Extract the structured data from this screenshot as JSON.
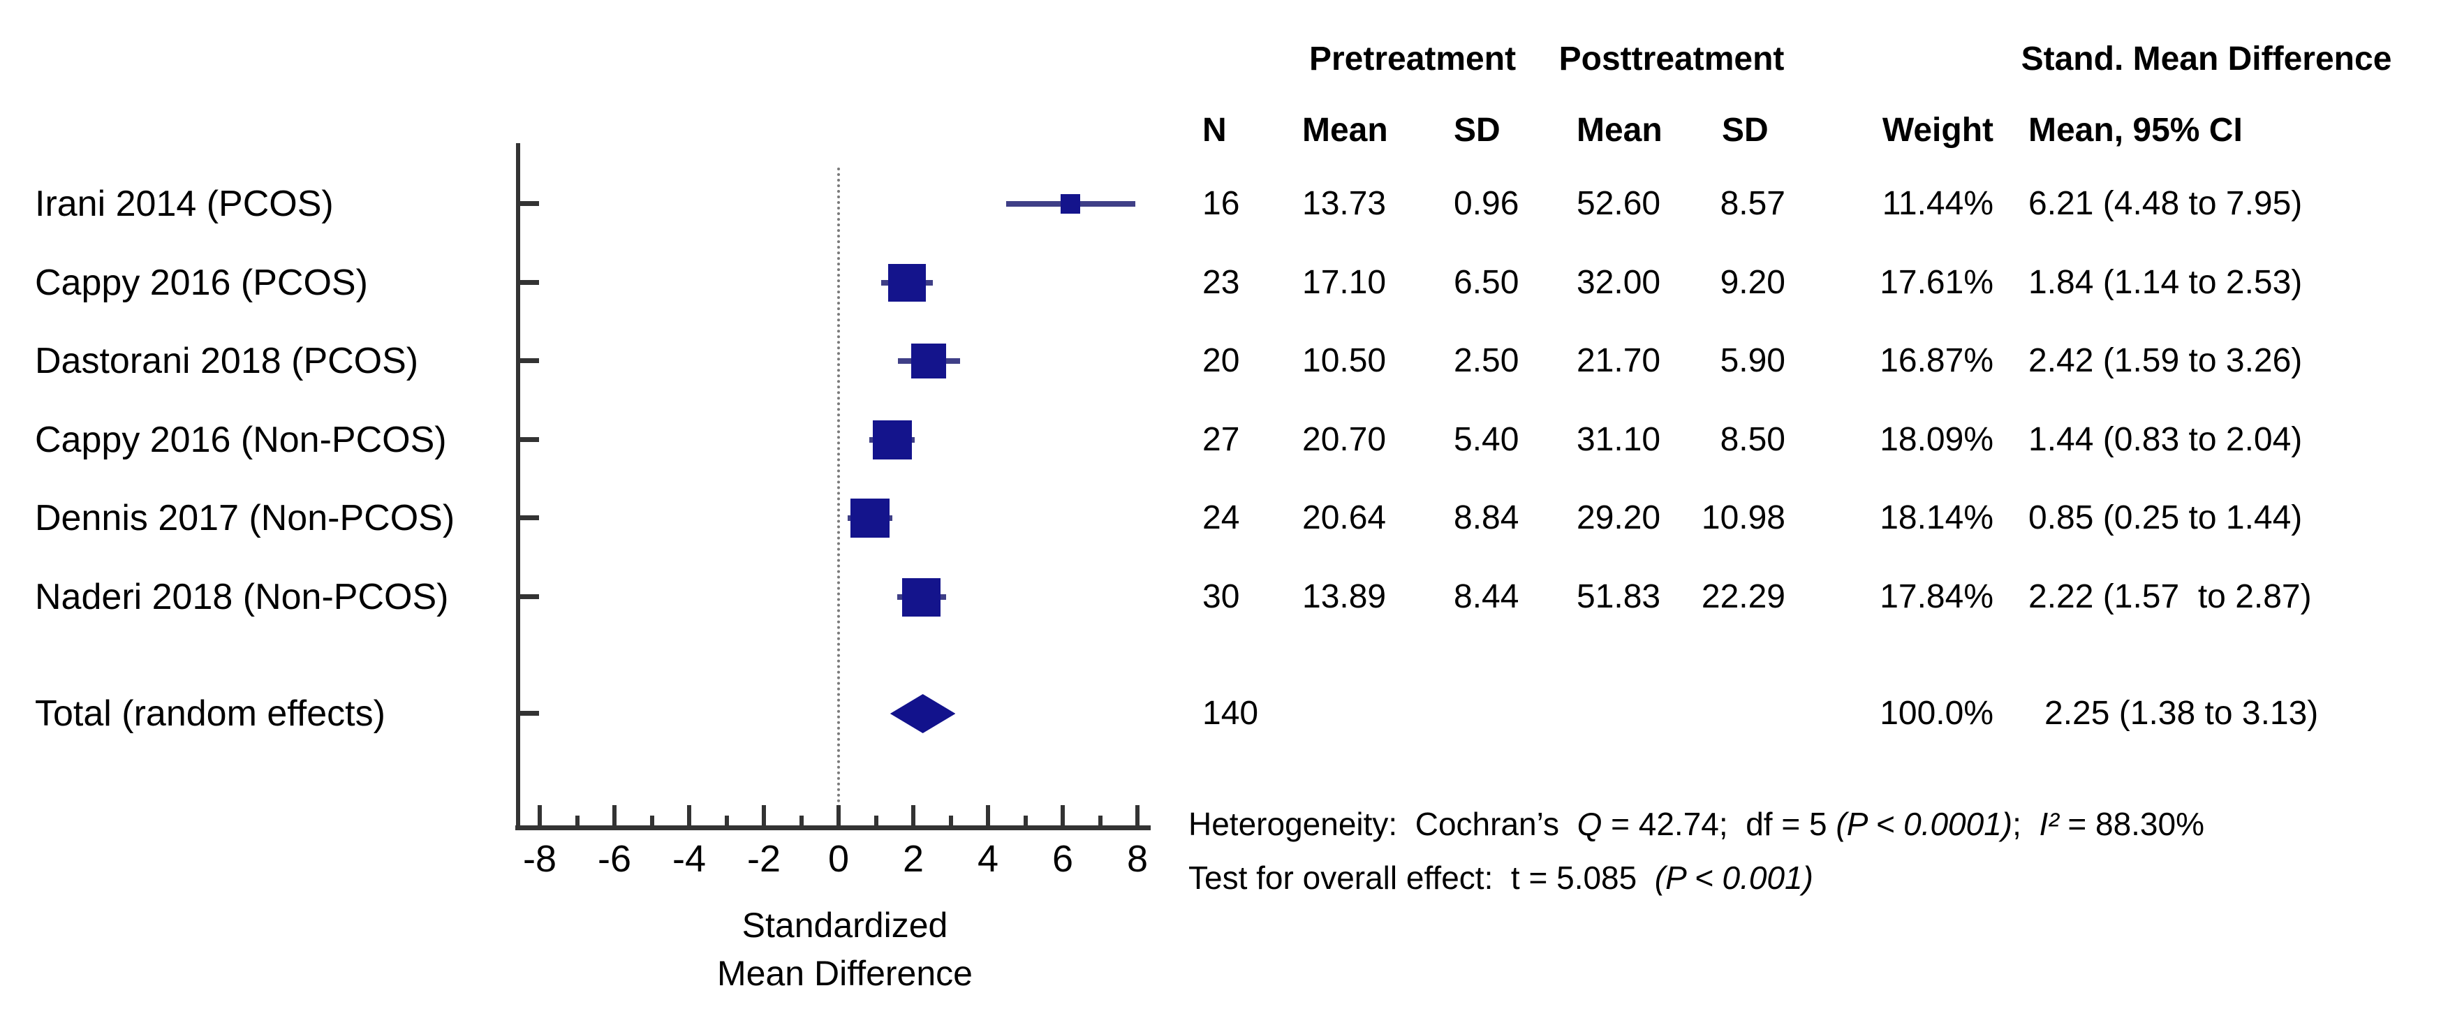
{
  "headers": {
    "pretreatment": "Pretreatment",
    "posttreatment": "Posttreatment",
    "smd_group": "Stand. Mean Difference",
    "n": "N",
    "pre_mean": "Mean",
    "pre_sd": "SD",
    "post_mean": "Mean",
    "post_sd": "SD",
    "weight": "Weight",
    "mean_ci": "Mean, 95% CI"
  },
  "axis_title": {
    "line1": "Standardized",
    "line2": "Mean Difference"
  },
  "colors": {
    "marker_square": "#14148C",
    "ci_line": "#3F3F87",
    "diamond": "#12128C",
    "axis": "#333333"
  },
  "chart_data": {
    "type": "forest",
    "xlabel": "Standardized Mean Difference",
    "x_axis": {
      "min": -8,
      "max": 8,
      "major_ticks": [
        -8,
        -6,
        -4,
        -2,
        0,
        2,
        4,
        6,
        8
      ],
      "minor_ticks": [
        -7,
        -5,
        -3,
        -1,
        1,
        3,
        5,
        7
      ],
      "zero_reference_line": 0
    },
    "studies": [
      {
        "label": "Irani 2014 (PCOS)",
        "n": "16",
        "pre_mean": "13.73",
        "pre_sd": "0.96",
        "post_mean": "52.60",
        "post_sd": "8.57",
        "weight": "11.44%",
        "weight_value": 11.44,
        "smd": 6.21,
        "ci_low": 4.48,
        "ci_high": 7.95,
        "ci_text": "6.21 (4.48 to 7.95)"
      },
      {
        "label": "Cappy 2016 (PCOS)",
        "n": "23",
        "pre_mean": "17.10",
        "pre_sd": "6.50",
        "post_mean": "32.00",
        "post_sd": "9.20",
        "weight": "17.61%",
        "weight_value": 17.61,
        "smd": 1.84,
        "ci_low": 1.14,
        "ci_high": 2.53,
        "ci_text": "1.84 (1.14 to 2.53)"
      },
      {
        "label": "Dastorani 2018 (PCOS)",
        "n": "20",
        "pre_mean": "10.50",
        "pre_sd": "2.50",
        "post_mean": "21.70",
        "post_sd": "5.90",
        "weight": "16.87%",
        "weight_value": 16.87,
        "smd": 2.42,
        "ci_low": 1.59,
        "ci_high": 3.26,
        "ci_text": "2.42 (1.59 to 3.26)"
      },
      {
        "label": "Cappy 2016 (Non-PCOS)",
        "n": "27",
        "pre_mean": "20.70",
        "pre_sd": "5.40",
        "post_mean": "31.10",
        "post_sd": "8.50",
        "weight": "18.09%",
        "weight_value": 18.09,
        "smd": 1.44,
        "ci_low": 0.83,
        "ci_high": 2.04,
        "ci_text": "1.44 (0.83 to 2.04)"
      },
      {
        "label": "Dennis 2017 (Non-PCOS)",
        "n": "24",
        "pre_mean": "20.64",
        "pre_sd": "8.84",
        "post_mean": "29.20",
        "post_sd": "10.98",
        "weight": "18.14%",
        "weight_value": 18.14,
        "smd": 0.85,
        "ci_low": 0.25,
        "ci_high": 1.44,
        "ci_text": "0.85 (0.25 to 1.44)"
      },
      {
        "label": "Naderi 2018 (Non-PCOS)",
        "n": "30",
        "pre_mean": "13.89",
        "pre_sd": "8.44",
        "post_mean": "51.83",
        "post_sd": "22.29",
        "weight": "17.84%",
        "weight_value": 17.84,
        "smd": 2.22,
        "ci_low": 1.57,
        "ci_high": 2.87,
        "ci_text": "2.22 (1.57  to 2.87)"
      }
    ],
    "total": {
      "label": "Total (random effects)",
      "n": "140",
      "weight": "100.0%",
      "weight_value": 100.0,
      "smd": 2.25,
      "ci_low": 1.38,
      "ci_high": 3.13,
      "ci_text": "2.25 (1.38 to 3.13)"
    },
    "heterogeneity": {
      "cochran_q": "42.74",
      "df": "5",
      "p_heterogeneity": "< 0.0001",
      "i_squared": "88.30%",
      "t_overall": "5.085",
      "p_overall": "< 0.001"
    }
  },
  "stats": {
    "line1": [
      {
        "t": "Heterogeneity:  Cochran’s  "
      },
      {
        "t": "Q",
        "i": true
      },
      {
        "t": " = 42.74;  df = 5 "
      },
      {
        "t": "(P < 0.0001)",
        "i": true
      },
      {
        "t": ";  "
      },
      {
        "t": "I²",
        "i": true
      },
      {
        "t": " = 88.30%"
      }
    ],
    "line2": [
      {
        "t": "Test for overall effect:  t = 5.085  "
      },
      {
        "t": "(P < 0.001)",
        "i": true
      }
    ]
  }
}
